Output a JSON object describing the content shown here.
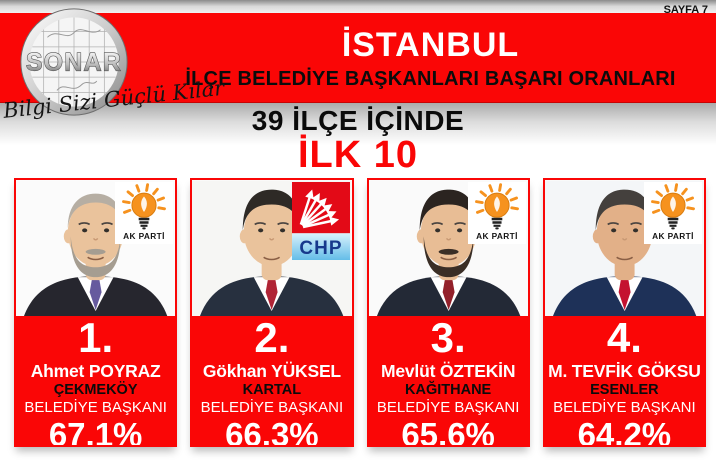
{
  "page_label": "SAYFA 7",
  "banner": {
    "title": "İSTANBUL",
    "subtitle": "İLÇE BELEDİYE BAŞKANLARI BAŞARI ORANLARI"
  },
  "logo": {
    "name": "SONAR",
    "slogan": "Bilgi Sizi Güçlü Kılar"
  },
  "heading": {
    "line1": "39 İLÇE İÇİNDE",
    "line2": "İLK 10"
  },
  "colors": {
    "banner_red": "#fa0606",
    "akp_orange": "#f6921e",
    "chp_red": "#e30a17",
    "chp_bar_top": "#d9f1fc",
    "chp_bar_bottom": "#64bde8",
    "chp_text_blue": "#17398c"
  },
  "cards": [
    {
      "rank": "1.",
      "name": "Ahmet POYRAZ",
      "district": "ÇEKMEKÖY",
      "role": "BELEDİYE BAŞKANI",
      "percent": "67,1%",
      "party": "AK PARTİ",
      "party_type": "akp",
      "avatar": {
        "bg": "#fbfbfb",
        "skin": "#eac39c",
        "hair": "#b6aea3",
        "bald": true,
        "beard": "#a59d91",
        "suit": "#26262e",
        "shirt": "#ffffff",
        "tie": "#665a9e"
      }
    },
    {
      "rank": "2.",
      "name": "Gökhan YÜKSEL",
      "district": "KARTAL",
      "role": "BELEDİYE BAŞKANI",
      "percent": "66,3%",
      "party": "CHP",
      "party_type": "chp",
      "avatar": {
        "bg": "#f6f6f4",
        "skin": "#eac39c",
        "hair": "#2e2a26",
        "bald": false,
        "beard": null,
        "suit": "#27303f",
        "shirt": "#ffffff",
        "tie": "#b02436"
      }
    },
    {
      "rank": "3.",
      "name": "Mevlüt ÖZTEKİN",
      "district": "KAĞITHANE",
      "role": "BELEDİYE BAŞKANI",
      "percent": "65,6%",
      "party": "AK PARTİ",
      "party_type": "akp",
      "avatar": {
        "bg": "#fafafa",
        "skin": "#e8bd95",
        "hair": "#2b2420",
        "bald": false,
        "beard": "#3a2e26",
        "suit": "#232936",
        "shirt": "#ffffff",
        "tie": "#93212b"
      }
    },
    {
      "rank": "4.",
      "name": "M. TEVFİK GÖKSU",
      "district": "ESENLER",
      "role": "BELEDİYE BAŞKANI",
      "percent": "64,2%",
      "party": "AK PARTİ",
      "party_type": "akp",
      "avatar": {
        "bg": "#f4f6f8",
        "skin": "#e2b088",
        "hair": "#44403d",
        "bald": false,
        "beard": null,
        "suit": "#1e3158",
        "shirt": "#ffffff",
        "tie": "#c41230"
      }
    }
  ]
}
